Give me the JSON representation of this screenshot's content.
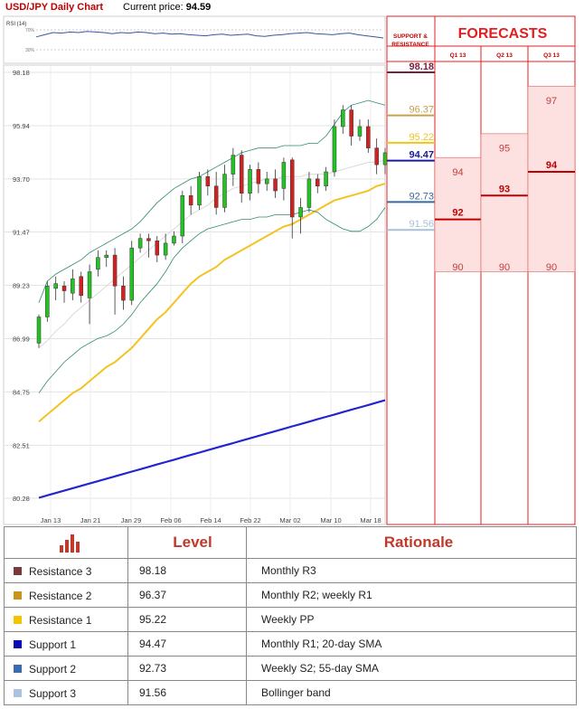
{
  "header": {
    "pair": "USD/JPY Daily Chart",
    "price_label": "Current price:",
    "price": "94.59"
  },
  "rsi": {
    "label": "RSI (14)",
    "tick_hi": "70%",
    "tick_lo": "30%",
    "values": [
      62,
      66,
      70,
      69,
      71,
      70,
      72,
      71,
      70,
      68,
      70,
      69,
      71,
      70,
      68,
      69,
      67,
      68,
      66,
      65,
      64,
      66,
      67,
      65,
      66,
      67,
      64,
      63,
      65,
      66,
      68,
      69,
      70,
      68,
      67,
      66,
      68,
      69,
      66,
      64,
      62,
      60
    ]
  },
  "chart_data": [
    {
      "type": "line",
      "title": "USD/JPY Daily Chart",
      "y_ticks": [
        "98.18",
        "95.94",
        "93.70",
        "91.47",
        "89.23",
        "86.99",
        "84.75",
        "82.51",
        "80.28"
      ],
      "ylim": [
        80.28,
        98.18
      ],
      "x_ticks": [
        "Jan 13",
        "Jan 21",
        "Jan 29",
        "Feb 06",
        "Feb 14",
        "Feb 22",
        "Mar 02",
        "Mar 10",
        "Mar 18"
      ],
      "x_range": [
        0,
        42
      ],
      "candles": [
        [
          86.8,
          87.9,
          86.6,
          88.0
        ],
        [
          87.9,
          89.2,
          87.7,
          89.4
        ],
        [
          89.1,
          89.3,
          88.6,
          89.6
        ],
        [
          89.2,
          89.0,
          88.5,
          89.4
        ],
        [
          88.9,
          89.5,
          88.6,
          89.9
        ],
        [
          89.6,
          88.8,
          88.5,
          89.8
        ],
        [
          88.7,
          89.8,
          87.6,
          90.1
        ],
        [
          89.9,
          90.4,
          89.6,
          90.7
        ],
        [
          90.4,
          90.5,
          90.0,
          90.7
        ],
        [
          90.5,
          89.2,
          88.0,
          90.8
        ],
        [
          89.2,
          88.6,
          88.2,
          89.6
        ],
        [
          88.6,
          90.8,
          88.4,
          91.1
        ],
        [
          90.8,
          91.2,
          90.6,
          91.4
        ],
        [
          91.2,
          91.1,
          90.4,
          91.4
        ],
        [
          91.1,
          90.5,
          90.2,
          91.3
        ],
        [
          90.5,
          91.0,
          90.3,
          91.4
        ],
        [
          91.0,
          91.3,
          90.9,
          91.5
        ],
        [
          91.3,
          93.0,
          91.0,
          93.2
        ],
        [
          93.0,
          92.6,
          92.2,
          93.4
        ],
        [
          92.6,
          93.8,
          92.4,
          94.0
        ],
        [
          93.8,
          93.4,
          93.0,
          94.1
        ],
        [
          93.4,
          92.5,
          92.2,
          94.0
        ],
        [
          92.5,
          93.9,
          92.3,
          94.3
        ],
        [
          93.9,
          94.7,
          93.4,
          95.0
        ],
        [
          94.7,
          93.1,
          92.7,
          94.9
        ],
        [
          93.1,
          94.1,
          92.8,
          94.3
        ],
        [
          94.1,
          93.5,
          93.1,
          94.4
        ],
        [
          93.5,
          93.7,
          93.2,
          94.0
        ],
        [
          93.7,
          93.2,
          92.9,
          94.1
        ],
        [
          93.3,
          94.4,
          92.8,
          94.6
        ],
        [
          94.5,
          92.1,
          91.2,
          94.6
        ],
        [
          92.1,
          92.5,
          91.4,
          92.9
        ],
        [
          92.5,
          93.7,
          92.3,
          94.0
        ],
        [
          93.7,
          93.4,
          93.1,
          93.9
        ],
        [
          93.4,
          94.0,
          93.2,
          94.2
        ],
        [
          94.0,
          95.9,
          93.8,
          96.2
        ],
        [
          95.9,
          96.6,
          95.6,
          96.8
        ],
        [
          96.6,
          95.5,
          95.1,
          96.8
        ],
        [
          95.5,
          95.9,
          95.3,
          96.2
        ],
        [
          95.9,
          95.0,
          94.8,
          96.2
        ],
        [
          95.0,
          94.3,
          93.9,
          95.4
        ],
        [
          94.3,
          94.8,
          93.9,
          95.0
        ]
      ],
      "series": [
        {
          "values": [
            83.5,
            83.8,
            84.1,
            84.4,
            84.7,
            84.9,
            85.2,
            85.5,
            85.8,
            86.0,
            86.3,
            86.6,
            87.0,
            87.4,
            87.8,
            88.1,
            88.5,
            88.9,
            89.3,
            89.6,
            89.8,
            90.0,
            90.3,
            90.5,
            90.7,
            90.9,
            91.1,
            91.3,
            91.5,
            91.7,
            91.8,
            92.0,
            92.2,
            92.4,
            92.6,
            92.8,
            92.9,
            93.0,
            93.1,
            93.2,
            93.4,
            93.5
          ]
        },
        {
          "values": [
            80.3,
            80.4,
            80.5,
            80.6,
            80.7,
            80.8,
            80.9,
            81.0,
            81.1,
            81.2,
            81.3,
            81.4,
            81.5,
            81.6,
            81.7,
            81.8,
            81.9,
            82.0,
            82.1,
            82.2,
            82.3,
            82.4,
            82.5,
            82.6,
            82.7,
            82.8,
            82.9,
            83.0,
            83.1,
            83.2,
            83.3,
            83.4,
            83.5,
            83.6,
            83.7,
            83.8,
            83.9,
            84.0,
            84.1,
            84.2,
            84.3,
            84.4
          ]
        },
        {
          "values": [
            88.5,
            89.4,
            89.7,
            89.9,
            90.1,
            90.3,
            90.6,
            90.8,
            91.0,
            91.2,
            91.4,
            91.6,
            91.9,
            92.3,
            92.7,
            93.0,
            93.3,
            93.5,
            93.7,
            93.8,
            94.0,
            94.2,
            94.4,
            94.6,
            94.8,
            94.9,
            95.0,
            95.0,
            95.0,
            95.1,
            95.1,
            95.1,
            95.2,
            95.2,
            95.5,
            96.0,
            96.5,
            96.8,
            96.9,
            97.0,
            96.9,
            96.8
          ]
        },
        {
          "values": [
            84.7,
            85.2,
            85.6,
            86.0,
            86.3,
            86.6,
            86.8,
            87.0,
            87.1,
            87.3,
            87.6,
            88.0,
            88.5,
            88.9,
            89.3,
            89.8,
            90.4,
            90.8,
            91.1,
            91.4,
            91.6,
            91.7,
            91.8,
            91.9,
            92.0,
            92.0,
            92.1,
            92.1,
            92.2,
            92.2,
            92.2,
            92.3,
            92.4,
            92.3,
            92.0,
            91.8,
            91.6,
            91.5,
            91.5,
            91.7,
            92.0,
            92.5
          ]
        },
        {
          "values": [
            86.6,
            86.9,
            87.3,
            87.6,
            88.0,
            88.3,
            88.6,
            88.9,
            89.2,
            89.5,
            89.8,
            90.1,
            90.4,
            90.7,
            91.0,
            91.3,
            91.6,
            91.9,
            92.2,
            92.4,
            92.6,
            92.9,
            93.1,
            93.3,
            93.4,
            93.5,
            93.6,
            93.7,
            93.7,
            93.8,
            93.8,
            93.8,
            93.9,
            93.9,
            93.9,
            94.0,
            94.1,
            94.2,
            94.3,
            94.4,
            94.4,
            94.5
          ]
        }
      ]
    },
    {
      "type": "table",
      "title": "FORECASTS",
      "support_resistance_label": [
        "SUPPORT &",
        "RESISTANCE"
      ],
      "levels": [
        {
          "value": "98.18",
          "color": "#7a1f3d"
        },
        {
          "value": "96.37",
          "color": "#c8a04a"
        },
        {
          "value": "95.22",
          "color": "#f0c419"
        },
        {
          "value": "94.47",
          "color": "#1a1aa0"
        },
        {
          "value": "92.73",
          "color": "#3a6a9a"
        },
        {
          "value": "91.56",
          "color": "#a8c0d8"
        }
      ],
      "quarters": [
        {
          "name": "Q1 13",
          "high": 94,
          "mid": 92,
          "low": 90
        },
        {
          "name": "Q2 13",
          "high": 95,
          "mid": 93,
          "low": 90
        },
        {
          "name": "Q3 13",
          "high": 97,
          "mid": 94,
          "low": 90
        }
      ]
    }
  ],
  "table": {
    "col_level": "Level",
    "col_rationale": "Rationale",
    "rows": [
      {
        "name": "Resistance 3",
        "color": "#7a3a3a",
        "level": "98.18",
        "rationale": "Monthly R3"
      },
      {
        "name": "Resistance 2",
        "color": "#c8941a",
        "level": "96.37",
        "rationale": "Monthly R2; weekly R1"
      },
      {
        "name": "Resistance 1",
        "color": "#f5c400",
        "level": "95.22",
        "rationale": "Weekly PP"
      },
      {
        "name": "Support 1",
        "color": "#0a0ab0",
        "level": "94.47",
        "rationale": "Monthly R1; 20-day SMA"
      },
      {
        "name": "Support 2",
        "color": "#3a6ab0",
        "level": "92.73",
        "rationale": "Weekly S2; 55-day SMA"
      },
      {
        "name": "Support 3",
        "color": "#a8c4e0",
        "level": "91.56",
        "rationale": "Bollinger band"
      }
    ]
  }
}
